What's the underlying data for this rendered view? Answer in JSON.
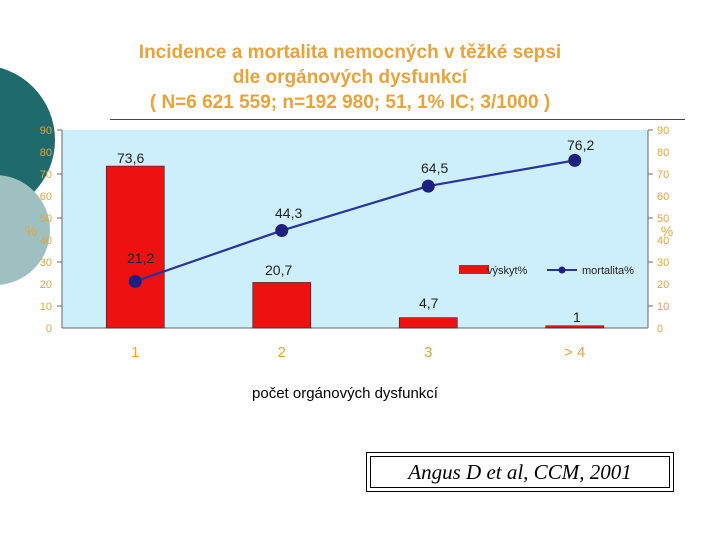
{
  "slide": {
    "title_lines": [
      "Incidence a mortalita nemocných v těžké sepsi",
      "dle orgánových dysfunkcí",
      "( N=6 621 559; n=192 980; 51, 1% IC; 3/1000 )"
    ],
    "xlabel": "počet orgánových dysfunkcí",
    "citation": "Angus D et al, CCM, 2001"
  },
  "colors": {
    "title": "#e8a33b",
    "teal": "#1f6a6c",
    "plot_bg": "#cdeffb",
    "bar": "#ee1111",
    "line": "#2733a0",
    "marker": "#1f1f80",
    "tick": "#e8a33b"
  },
  "chart_data": {
    "type": "bar+line",
    "categories": [
      "1",
      "2",
      "3",
      "> 4"
    ],
    "series": [
      {
        "name": "výskyt%",
        "type": "bar",
        "values": [
          73.6,
          20.7,
          4.7,
          1
        ],
        "labels": [
          "73,6",
          "20,7",
          "4,7",
          "1"
        ]
      },
      {
        "name": "mortalita%",
        "type": "line",
        "values": [
          21.2,
          44.3,
          64.5,
          76.2
        ],
        "labels": [
          "21,2",
          "44,3",
          "64,5",
          "76,2"
        ]
      }
    ],
    "ylabel_left": "%",
    "ylabel_right": "%",
    "ylim": [
      0,
      90
    ],
    "yticks": [
      "0",
      "10",
      "20",
      "30",
      "40",
      "50",
      "60",
      "70",
      "80",
      "90"
    ],
    "legend_position": "right, inside plot",
    "grid": false
  }
}
